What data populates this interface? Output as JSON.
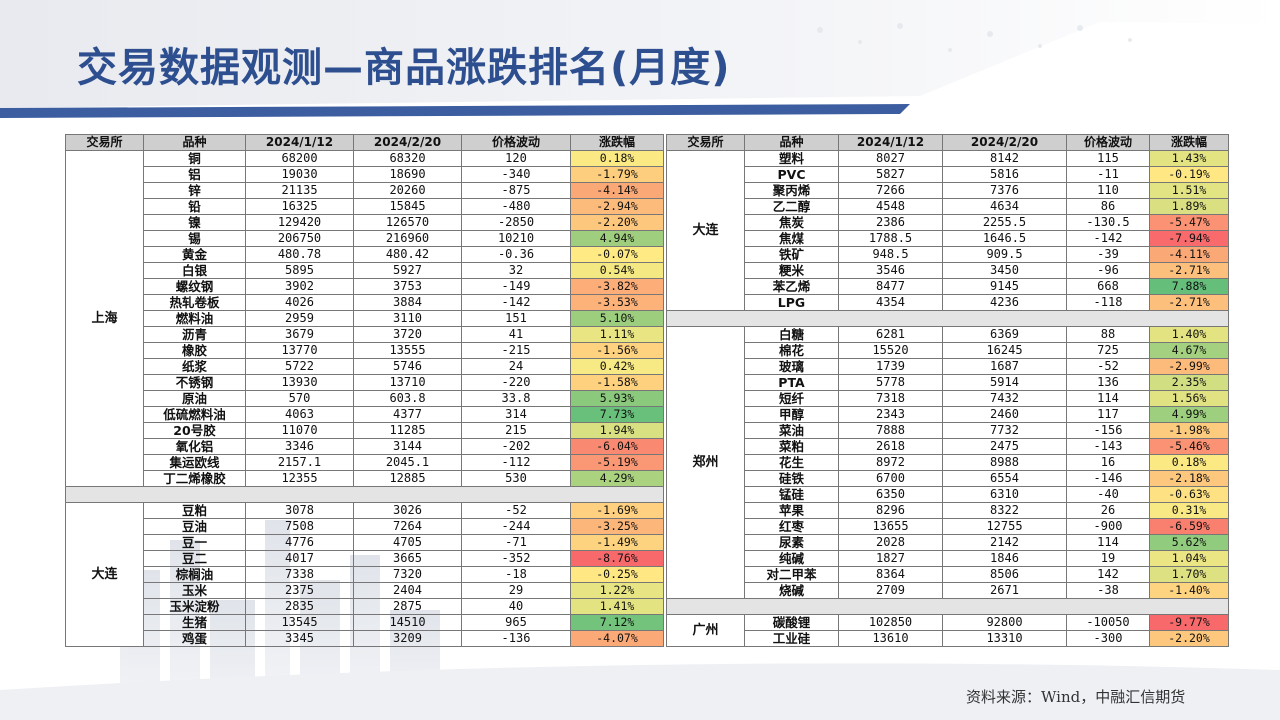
{
  "title": "交易数据观测—商品涨跌排名(月度)",
  "source": "资料来源：Wind，中融汇信期货",
  "headers": [
    "交易所",
    "品种",
    "2024/1/12",
    "2024/2/20",
    "价格波动",
    "涨跌幅"
  ],
  "colors": {
    "title": "#2d4f8f",
    "up_strong": "#63be7b",
    "neutral": "#ffeb84",
    "down_strong": "#f8696b"
  },
  "left": {
    "groups": [
      {
        "exchange": "上海",
        "rows": [
          {
            "name": "铜",
            "p1": "68200",
            "p2": "68320",
            "chg": "120",
            "pct": "0.18%",
            "pv": 0.18
          },
          {
            "name": "铝",
            "p1": "19030",
            "p2": "18690",
            "chg": "-340",
            "pct": "-1.79%",
            "pv": -1.79
          },
          {
            "name": "锌",
            "p1": "21135",
            "p2": "20260",
            "chg": "-875",
            "pct": "-4.14%",
            "pv": -4.14
          },
          {
            "name": "铅",
            "p1": "16325",
            "p2": "15845",
            "chg": "-480",
            "pct": "-2.94%",
            "pv": -2.94
          },
          {
            "name": "镍",
            "p1": "129420",
            "p2": "126570",
            "chg": "-2850",
            "pct": "-2.20%",
            "pv": -2.2
          },
          {
            "name": "锡",
            "p1": "206750",
            "p2": "216960",
            "chg": "10210",
            "pct": "4.94%",
            "pv": 4.94
          },
          {
            "name": "黄金",
            "p1": "480.78",
            "p2": "480.42",
            "chg": "-0.36",
            "pct": "-0.07%",
            "pv": -0.07
          },
          {
            "name": "白银",
            "p1": "5895",
            "p2": "5927",
            "chg": "32",
            "pct": "0.54%",
            "pv": 0.54
          },
          {
            "name": "螺纹钢",
            "p1": "3902",
            "p2": "3753",
            "chg": "-149",
            "pct": "-3.82%",
            "pv": -3.82
          },
          {
            "name": "热轧卷板",
            "p1": "4026",
            "p2": "3884",
            "chg": "-142",
            "pct": "-3.53%",
            "pv": -3.53
          },
          {
            "name": "燃料油",
            "p1": "2959",
            "p2": "3110",
            "chg": "151",
            "pct": "5.10%",
            "pv": 5.1
          },
          {
            "name": "沥青",
            "p1": "3679",
            "p2": "3720",
            "chg": "41",
            "pct": "1.11%",
            "pv": 1.11
          },
          {
            "name": "橡胶",
            "p1": "13770",
            "p2": "13555",
            "chg": "-215",
            "pct": "-1.56%",
            "pv": -1.56
          },
          {
            "name": "纸浆",
            "p1": "5722",
            "p2": "5746",
            "chg": "24",
            "pct": "0.42%",
            "pv": 0.42
          },
          {
            "name": "不锈钢",
            "p1": "13930",
            "p2": "13710",
            "chg": "-220",
            "pct": "-1.58%",
            "pv": -1.58
          },
          {
            "name": "原油",
            "p1": "570",
            "p2": "603.8",
            "chg": "33.8",
            "pct": "5.93%",
            "pv": 5.93
          },
          {
            "name": "低硫燃料油",
            "p1": "4063",
            "p2": "4377",
            "chg": "314",
            "pct": "7.73%",
            "pv": 7.73
          },
          {
            "name": "20号胶",
            "p1": "11070",
            "p2": "11285",
            "chg": "215",
            "pct": "1.94%",
            "pv": 1.94
          },
          {
            "name": "氧化铝",
            "p1": "3346",
            "p2": "3144",
            "chg": "-202",
            "pct": "-6.04%",
            "pv": -6.04
          },
          {
            "name": "集运欧线",
            "p1": "2157.1",
            "p2": "2045.1",
            "chg": "-112",
            "pct": "-5.19%",
            "pv": -5.19
          },
          {
            "name": "丁二烯橡胶",
            "p1": "12355",
            "p2": "12885",
            "chg": "530",
            "pct": "4.29%",
            "pv": 4.29
          }
        ]
      },
      {
        "exchange": "大连",
        "rows": [
          {
            "name": "豆粕",
            "p1": "3078",
            "p2": "3026",
            "chg": "-52",
            "pct": "-1.69%",
            "pv": -1.69
          },
          {
            "name": "豆油",
            "p1": "7508",
            "p2": "7264",
            "chg": "-244",
            "pct": "-3.25%",
            "pv": -3.25
          },
          {
            "name": "豆一",
            "p1": "4776",
            "p2": "4705",
            "chg": "-71",
            "pct": "-1.49%",
            "pv": -1.49
          },
          {
            "name": "豆二",
            "p1": "4017",
            "p2": "3665",
            "chg": "-352",
            "pct": "-8.76%",
            "pv": -8.76
          },
          {
            "name": "棕榈油",
            "p1": "7338",
            "p2": "7320",
            "chg": "-18",
            "pct": "-0.25%",
            "pv": -0.25
          },
          {
            "name": "玉米",
            "p1": "2375",
            "p2": "2404",
            "chg": "29",
            "pct": "1.22%",
            "pv": 1.22
          },
          {
            "name": "玉米淀粉",
            "p1": "2835",
            "p2": "2875",
            "chg": "40",
            "pct": "1.41%",
            "pv": 1.41
          },
          {
            "name": "生猪",
            "p1": "13545",
            "p2": "14510",
            "chg": "965",
            "pct": "7.12%",
            "pv": 7.12
          },
          {
            "name": "鸡蛋",
            "p1": "3345",
            "p2": "3209",
            "chg": "-136",
            "pct": "-4.07%",
            "pv": -4.07
          }
        ]
      }
    ]
  },
  "right": {
    "groups": [
      {
        "exchange": "大连",
        "rows": [
          {
            "name": "塑料",
            "p1": "8027",
            "p2": "8142",
            "chg": "115",
            "pct": "1.43%",
            "pv": 1.43
          },
          {
            "name": "PVC",
            "p1": "5827",
            "p2": "5816",
            "chg": "-11",
            "pct": "-0.19%",
            "pv": -0.19
          },
          {
            "name": "聚丙烯",
            "p1": "7266",
            "p2": "7376",
            "chg": "110",
            "pct": "1.51%",
            "pv": 1.51
          },
          {
            "name": "乙二醇",
            "p1": "4548",
            "p2": "4634",
            "chg": "86",
            "pct": "1.89%",
            "pv": 1.89
          },
          {
            "name": "焦炭",
            "p1": "2386",
            "p2": "2255.5",
            "chg": "-130.5",
            "pct": "-5.47%",
            "pv": -5.47
          },
          {
            "name": "焦煤",
            "p1": "1788.5",
            "p2": "1646.5",
            "chg": "-142",
            "pct": "-7.94%",
            "pv": -7.94
          },
          {
            "name": "铁矿",
            "p1": "948.5",
            "p2": "909.5",
            "chg": "-39",
            "pct": "-4.11%",
            "pv": -4.11
          },
          {
            "name": "粳米",
            "p1": "3546",
            "p2": "3450",
            "chg": "-96",
            "pct": "-2.71%",
            "pv": -2.71
          },
          {
            "name": "苯乙烯",
            "p1": "8477",
            "p2": "9145",
            "chg": "668",
            "pct": "7.88%",
            "pv": 7.88
          },
          {
            "name": "LPG",
            "p1": "4354",
            "p2": "4236",
            "chg": "-118",
            "pct": "-2.71%",
            "pv": -2.71
          }
        ]
      },
      {
        "exchange": "郑州",
        "rows": [
          {
            "name": "白糖",
            "p1": "6281",
            "p2": "6369",
            "chg": "88",
            "pct": "1.40%",
            "pv": 1.4
          },
          {
            "name": "棉花",
            "p1": "15520",
            "p2": "16245",
            "chg": "725",
            "pct": "4.67%",
            "pv": 4.67
          },
          {
            "name": "玻璃",
            "p1": "1739",
            "p2": "1687",
            "chg": "-52",
            "pct": "-2.99%",
            "pv": -2.99
          },
          {
            "name": "PTA",
            "p1": "5778",
            "p2": "5914",
            "chg": "136",
            "pct": "2.35%",
            "pv": 2.35
          },
          {
            "name": "短纤",
            "p1": "7318",
            "p2": "7432",
            "chg": "114",
            "pct": "1.56%",
            "pv": 1.56
          },
          {
            "name": "甲醇",
            "p1": "2343",
            "p2": "2460",
            "chg": "117",
            "pct": "4.99%",
            "pv": 4.99
          },
          {
            "name": "菜油",
            "p1": "7888",
            "p2": "7732",
            "chg": "-156",
            "pct": "-1.98%",
            "pv": -1.98
          },
          {
            "name": "菜粕",
            "p1": "2618",
            "p2": "2475",
            "chg": "-143",
            "pct": "-5.46%",
            "pv": -5.46
          },
          {
            "name": "花生",
            "p1": "8972",
            "p2": "8988",
            "chg": "16",
            "pct": "0.18%",
            "pv": 0.18
          },
          {
            "name": "硅铁",
            "p1": "6700",
            "p2": "6554",
            "chg": "-146",
            "pct": "-2.18%",
            "pv": -2.18
          },
          {
            "name": "锰硅",
            "p1": "6350",
            "p2": "6310",
            "chg": "-40",
            "pct": "-0.63%",
            "pv": -0.63
          },
          {
            "name": "苹果",
            "p1": "8296",
            "p2": "8322",
            "chg": "26",
            "pct": "0.31%",
            "pv": 0.31
          },
          {
            "name": "红枣",
            "p1": "13655",
            "p2": "12755",
            "chg": "-900",
            "pct": "-6.59%",
            "pv": -6.59
          },
          {
            "name": "尿素",
            "p1": "2028",
            "p2": "2142",
            "chg": "114",
            "pct": "5.62%",
            "pv": 5.62
          },
          {
            "name": "纯碱",
            "p1": "1827",
            "p2": "1846",
            "chg": "19",
            "pct": "1.04%",
            "pv": 1.04
          },
          {
            "name": "对二甲苯",
            "p1": "8364",
            "p2": "8506",
            "chg": "142",
            "pct": "1.70%",
            "pv": 1.7
          },
          {
            "name": "烧碱",
            "p1": "2709",
            "p2": "2671",
            "chg": "-38",
            "pct": "-1.40%",
            "pv": -1.4
          }
        ]
      },
      {
        "exchange": "广州",
        "rows": [
          {
            "name": "碳酸锂",
            "p1": "102850",
            "p2": "92800",
            "chg": "-10050",
            "pct": "-9.77%",
            "pv": -9.77
          },
          {
            "name": "工业硅",
            "p1": "13610",
            "p2": "13310",
            "chg": "-300",
            "pct": "-2.20%",
            "pv": -2.2
          }
        ]
      }
    ]
  }
}
